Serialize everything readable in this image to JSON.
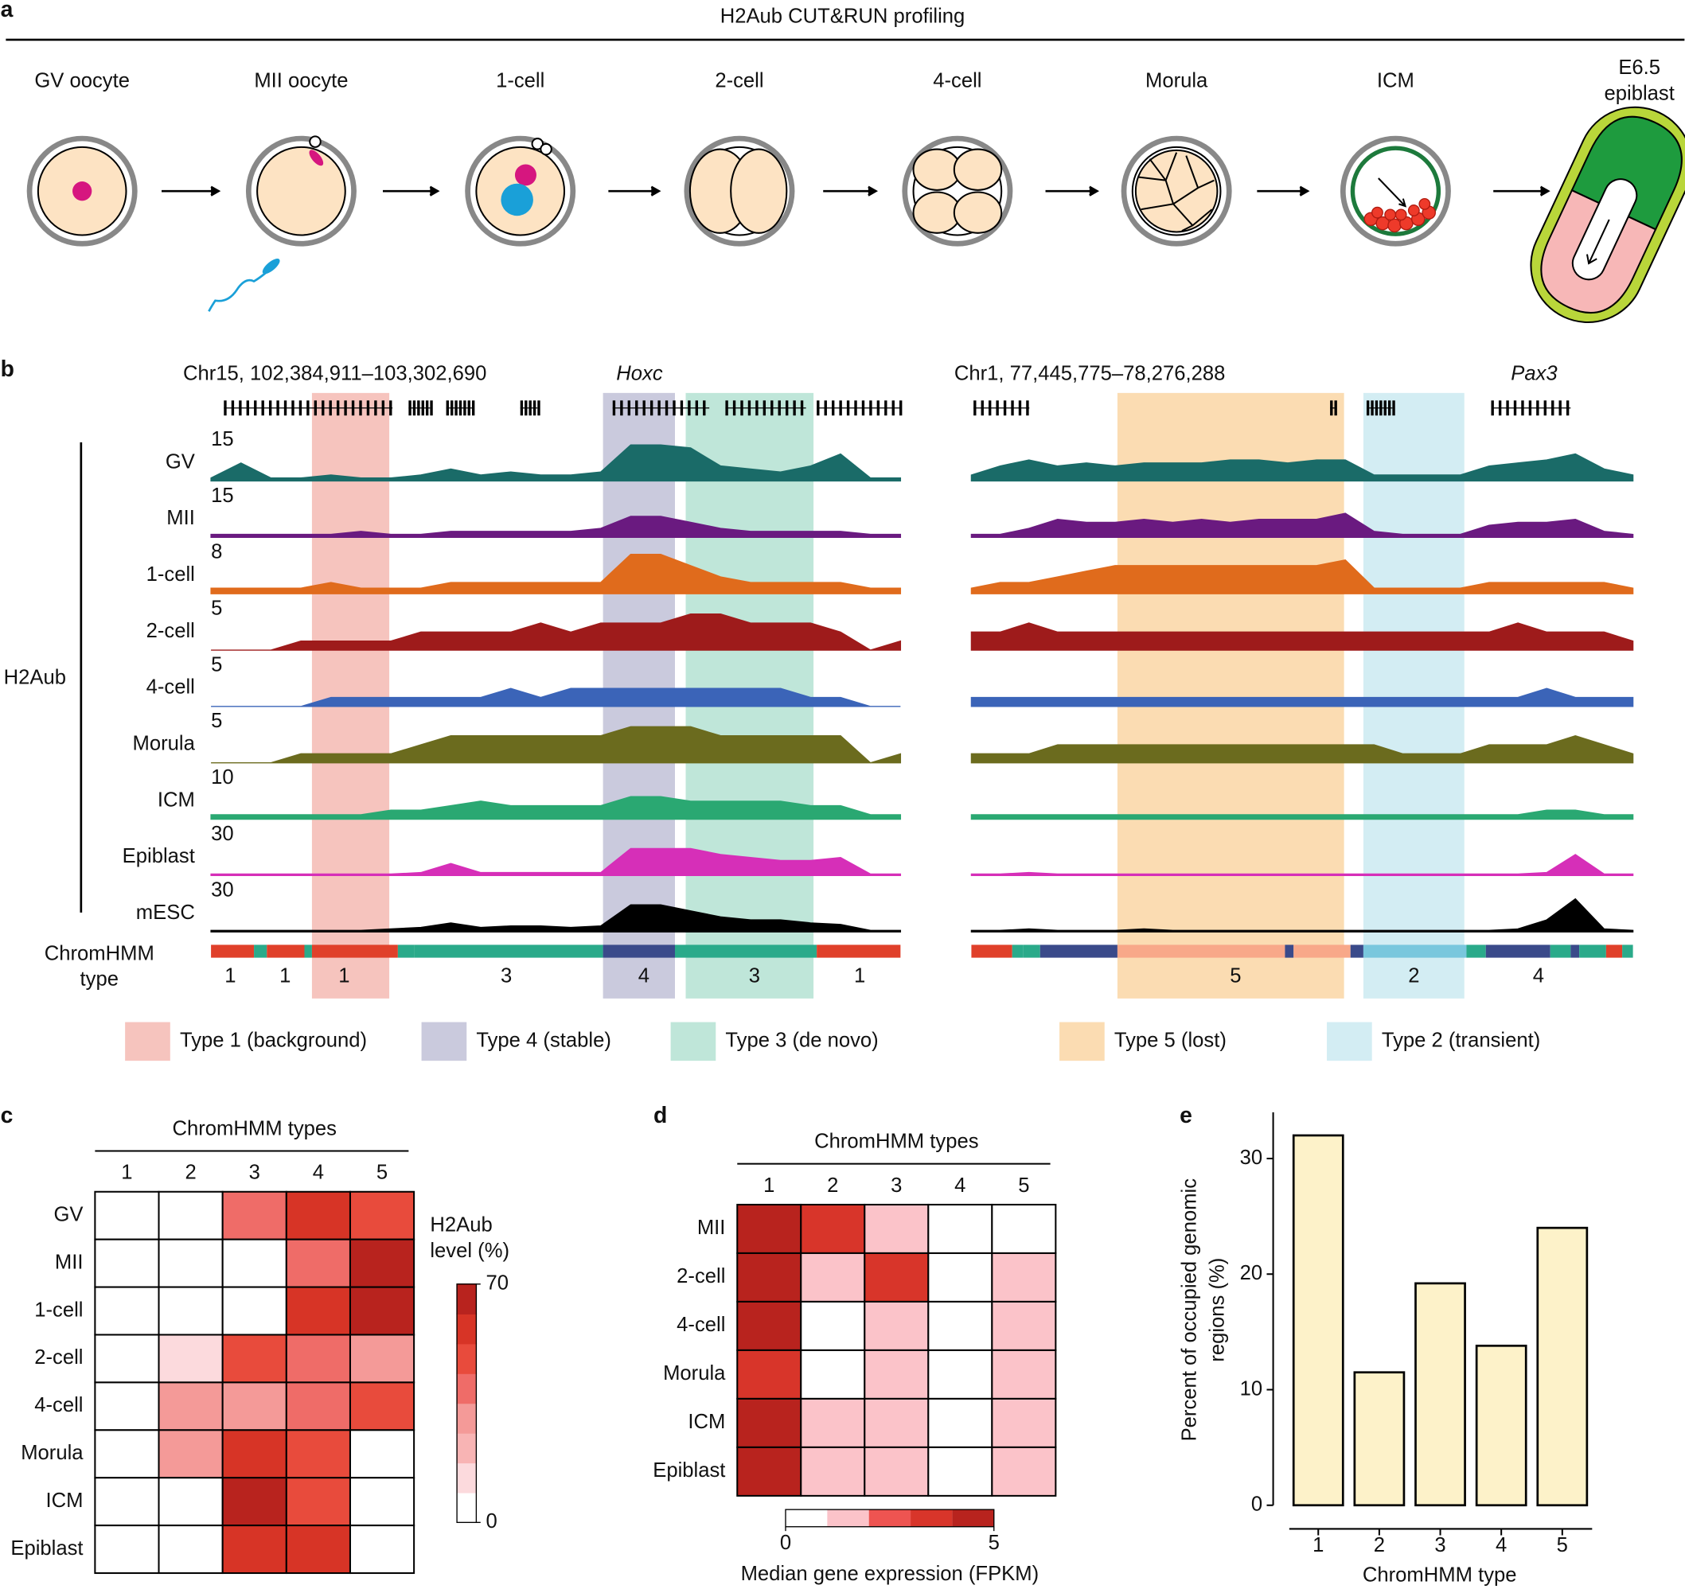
{
  "panel_a": {
    "label": "a",
    "title": "H2Aub CUT&RUN profiling",
    "stages": [
      "GV oocyte",
      "MII oocyte",
      "1-cell",
      "2-cell",
      "4-cell",
      "Morula",
      "ICM",
      [
        "E6.5",
        "epiblast"
      ]
    ]
  },
  "panel_b": {
    "label": "b",
    "group": "H2Aub",
    "chromhmm_label": [
      "ChromHMM",
      "type"
    ],
    "loci": [
      {
        "region": "Chr15, 102,384,911–103,302,690",
        "gene": "Hoxc",
        "chromhmm": [
          "1",
          "1",
          "1",
          "3",
          "4",
          "3",
          "1"
        ]
      },
      {
        "region": "Chr1, 77,445,775–78,276,288",
        "gene": "Pax3",
        "chromhmm": [
          "5",
          "2",
          "4"
        ]
      }
    ],
    "tracks": [
      {
        "name": "GV",
        "scale": 15,
        "color": "#1a6b68",
        "left": [
          1,
          6,
          1,
          1,
          2,
          1,
          1,
          2,
          4,
          2,
          3,
          2,
          2,
          3,
          12,
          12,
          11,
          5,
          4,
          3,
          5,
          9,
          1,
          1
        ],
        "right": [
          2,
          5,
          7,
          5,
          6,
          5,
          6,
          6,
          6,
          7,
          7,
          6,
          7,
          7,
          2,
          2,
          2,
          2,
          5,
          6,
          7,
          9,
          4,
          2
        ]
      },
      {
        "name": "MII",
        "scale": 15,
        "color": "#6a1a80",
        "left": [
          1,
          1,
          1,
          1,
          1,
          2,
          1,
          1,
          2,
          2,
          2,
          2,
          2,
          3,
          7,
          7,
          5,
          3,
          2,
          2,
          2,
          2,
          1,
          1
        ],
        "right": [
          1,
          1,
          3,
          6,
          5,
          5,
          6,
          5,
          6,
          5,
          6,
          6,
          6,
          8,
          2,
          1,
          1,
          1,
          4,
          5,
          5,
          6,
          2,
          1
        ]
      },
      {
        "name": "1-cell",
        "scale": 8,
        "color": "#e06b1c",
        "left": [
          1,
          1,
          1,
          1,
          2,
          1,
          1,
          1,
          2,
          2,
          2,
          2,
          2,
          2,
          7,
          7,
          5,
          3,
          2,
          2,
          2,
          2,
          1,
          1
        ],
        "right": [
          1,
          2,
          2,
          3,
          4,
          5,
          5,
          5,
          5,
          5,
          5,
          5,
          5,
          6,
          1,
          1,
          1,
          1,
          2,
          2,
          2,
          2,
          2,
          1
        ]
      },
      {
        "name": "2-cell",
        "scale": 5,
        "color": "#9e1b1b",
        "left": [
          0,
          0,
          0,
          1,
          1,
          1,
          1,
          2,
          2,
          2,
          2,
          3,
          2,
          3,
          3,
          3,
          4,
          4,
          3,
          3,
          3,
          2,
          0,
          1
        ],
        "right": [
          2,
          2,
          3,
          2,
          2,
          2,
          2,
          2,
          2,
          2,
          2,
          2,
          2,
          2,
          2,
          2,
          2,
          2,
          2,
          3,
          2,
          2,
          2,
          1
        ]
      },
      {
        "name": "4-cell",
        "scale": 5,
        "color": "#3b64b8",
        "left": [
          0,
          0,
          0,
          0,
          1,
          1,
          1,
          1,
          1,
          1,
          2,
          1,
          2,
          2,
          2,
          2,
          2,
          2,
          2,
          2,
          1,
          1,
          0,
          0
        ],
        "right": [
          1,
          1,
          1,
          1,
          1,
          1,
          1,
          1,
          1,
          1,
          1,
          1,
          1,
          1,
          1,
          1,
          1,
          1,
          1,
          1,
          2,
          1,
          1,
          1
        ]
      },
      {
        "name": "Morula",
        "scale": 5,
        "color": "#6b6b1e",
        "left": [
          0,
          0,
          0,
          1,
          1,
          1,
          1,
          2,
          3,
          3,
          3,
          3,
          3,
          3,
          4,
          4,
          4,
          3,
          3,
          3,
          3,
          3,
          0,
          1
        ],
        "right": [
          1,
          1,
          1,
          2,
          2,
          2,
          2,
          2,
          2,
          2,
          2,
          2,
          2,
          2,
          2,
          1,
          1,
          1,
          2,
          2,
          2,
          3,
          2,
          1
        ]
      },
      {
        "name": "ICM",
        "scale": 10,
        "color": "#2aa872",
        "left": [
          1,
          1,
          1,
          1,
          1,
          1,
          2,
          2,
          3,
          4,
          3,
          3,
          3,
          3,
          5,
          5,
          4,
          4,
          4,
          4,
          3,
          3,
          1,
          1
        ],
        "right": [
          1,
          1,
          1,
          1,
          1,
          1,
          1,
          1,
          1,
          1,
          1,
          1,
          1,
          1,
          1,
          1,
          1,
          1,
          1,
          1,
          2,
          2,
          1,
          1
        ]
      },
      {
        "name": "Epiblast",
        "scale": 30,
        "color": "#d62fb8",
        "left": [
          1,
          1,
          1,
          1,
          1,
          1,
          1,
          2,
          8,
          2,
          2,
          2,
          2,
          2,
          18,
          18,
          18,
          14,
          12,
          10,
          10,
          12,
          1,
          1
        ],
        "right": [
          1,
          1,
          2,
          1,
          1,
          1,
          1,
          1,
          1,
          1,
          1,
          1,
          1,
          1,
          1,
          1,
          1,
          1,
          1,
          1,
          2,
          14,
          1,
          1
        ]
      },
      {
        "name": "mESC",
        "scale": 30,
        "color": "#000000",
        "left": [
          1,
          1,
          1,
          1,
          1,
          1,
          2,
          3,
          6,
          3,
          4,
          4,
          3,
          4,
          18,
          18,
          14,
          10,
          8,
          8,
          6,
          5,
          1,
          1
        ],
        "right": [
          1,
          1,
          2,
          1,
          1,
          1,
          2,
          1,
          1,
          1,
          1,
          1,
          1,
          1,
          1,
          1,
          1,
          1,
          1,
          2,
          8,
          22,
          2,
          1
        ]
      }
    ],
    "legend": [
      {
        "name": "Type 1 (background)",
        "color": "#f6c4be"
      },
      {
        "name": "Type 4 (stable)",
        "color": "#cacadd"
      },
      {
        "name": "Type 3 (de novo)",
        "color": "#bfe6d9"
      },
      {
        "name": "Type 5 (lost)",
        "color": "#fbdcb2"
      },
      {
        "name": "Type 2 (transient)",
        "color": "#d3edf3"
      }
    ]
  },
  "chart_data": [
    {
      "type": "heatmap",
      "label": "c",
      "title": "ChromHMM types",
      "columns": [
        "1",
        "2",
        "3",
        "4",
        "5"
      ],
      "rows": [
        "GV",
        "MII",
        "1-cell",
        "2-cell",
        "4-cell",
        "Morula",
        "ICM",
        "Epiblast"
      ],
      "values": [
        [
          0,
          0,
          40,
          60,
          45
        ],
        [
          0,
          0,
          0,
          40,
          65
        ],
        [
          0,
          0,
          0,
          55,
          65
        ],
        [
          0,
          10,
          50,
          40,
          30
        ],
        [
          0,
          25,
          30,
          40,
          45
        ],
        [
          0,
          25,
          55,
          50,
          0
        ],
        [
          0,
          0,
          65,
          50,
          0
        ],
        [
          0,
          0,
          60,
          60,
          0
        ]
      ],
      "zlim": [
        0,
        70
      ],
      "zticks": [
        0,
        70
      ],
      "colors": [
        "#ffffff",
        "#fcdadd",
        "#f8b4b4",
        "#f49a98",
        "#ef6c68",
        "#e84b3c",
        "#d73426",
        "#b8231e"
      ],
      "colorbar_label": [
        "H2Aub",
        "level (%)"
      ]
    },
    {
      "type": "heatmap",
      "label": "d",
      "title": "ChromHMM types",
      "columns": [
        "1",
        "2",
        "3",
        "4",
        "5"
      ],
      "rows": [
        "MII",
        "2-cell",
        "4-cell",
        "Morula",
        "ICM",
        "Epiblast"
      ],
      "values": [
        [
          4.5,
          4,
          1,
          0,
          0
        ],
        [
          5,
          1,
          3.5,
          0,
          1
        ],
        [
          5,
          0,
          1,
          0,
          1
        ],
        [
          4,
          0,
          1,
          0,
          1
        ],
        [
          5,
          1,
          1,
          0,
          1
        ],
        [
          5,
          1,
          1,
          0,
          1
        ]
      ],
      "zlim": [
        0,
        5
      ],
      "zticks": [
        0,
        5
      ],
      "colors": [
        "#ffffff",
        "#fbc3c9",
        "#ee5451",
        "#d8352a",
        "#b8231e"
      ],
      "colorbar_label": [
        "Median gene expression (FPKM)"
      ]
    },
    {
      "type": "bar",
      "label": "e",
      "categories": [
        "1",
        "2",
        "3",
        "4",
        "5"
      ],
      "values": [
        32,
        11.5,
        19.2,
        13.8,
        24
      ],
      "color": "#fdf2c9",
      "ylim": [
        0,
        34
      ],
      "yticks": [
        0,
        10,
        20,
        30
      ],
      "xlabel": "ChromHMM type",
      "ylabel": [
        "Percent of occupied genomic",
        "regions (%)"
      ]
    }
  ]
}
